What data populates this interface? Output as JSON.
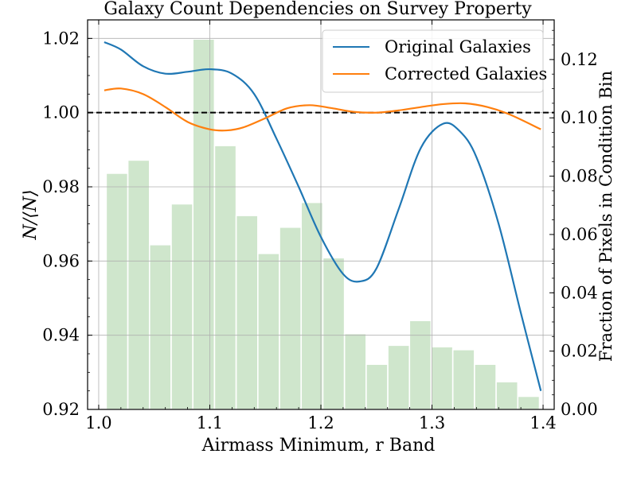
{
  "chart_data": {
    "type": "line",
    "title": "Galaxy Count Dependencies on Survey Property",
    "xlabel": "Airmass Minimum, r Band",
    "ylabel": "N/⟨N⟩",
    "y2label": "Fraction of Pixels in Condition Bin",
    "xlim": [
      0.99,
      1.41
    ],
    "ylim": [
      0.92,
      1.025
    ],
    "y2lim": [
      0.0,
      0.1336
    ],
    "xticks": [
      1.0,
      1.1,
      1.2,
      1.3,
      1.4
    ],
    "xtick_labels": [
      "1.0",
      "1.1",
      "1.2",
      "1.3",
      "1.4"
    ],
    "yticks": [
      0.92,
      0.94,
      0.96,
      0.98,
      1.0,
      1.02
    ],
    "ytick_labels": [
      "0.92",
      "0.94",
      "0.96",
      "0.98",
      "1.00",
      "1.02"
    ],
    "y2ticks": [
      0.0,
      0.02,
      0.04,
      0.06,
      0.08,
      0.1,
      0.12
    ],
    "y2tick_labels": [
      "0.00",
      "0.02",
      "0.04",
      "0.06",
      "0.08",
      "0.10",
      "0.12"
    ],
    "grid": true,
    "legend_position": "top-right",
    "reference_line": {
      "y": 1.0,
      "style": "dashed",
      "color": "#000000"
    },
    "series": [
      {
        "name": "Original Galaxies",
        "color": "#1f77b4",
        "x": [
          1.005,
          1.02,
          1.04,
          1.06,
          1.08,
          1.1,
          1.12,
          1.14,
          1.16,
          1.18,
          1.2,
          1.22,
          1.235,
          1.25,
          1.27,
          1.29,
          1.31,
          1.325,
          1.34,
          1.36,
          1.38,
          1.398
        ],
        "y": [
          1.019,
          1.017,
          1.0125,
          1.0105,
          1.011,
          1.0117,
          1.0105,
          1.005,
          0.993,
          0.98,
          0.9665,
          0.9565,
          0.9545,
          0.958,
          0.974,
          0.9905,
          0.997,
          0.995,
          0.988,
          0.97,
          0.946,
          0.925
        ]
      },
      {
        "name": "Corrected Galaxies",
        "color": "#ff7f0e",
        "x": [
          1.005,
          1.02,
          1.04,
          1.06,
          1.08,
          1.1,
          1.115,
          1.13,
          1.15,
          1.17,
          1.19,
          1.21,
          1.23,
          1.25,
          1.27,
          1.29,
          1.31,
          1.33,
          1.35,
          1.37,
          1.398
        ],
        "y": [
          1.006,
          1.0065,
          1.005,
          1.0015,
          0.9975,
          0.9955,
          0.9952,
          0.996,
          0.9985,
          1.0012,
          1.002,
          1.0012,
          1.0002,
          1.0,
          1.0006,
          1.0015,
          1.0023,
          1.0025,
          1.0015,
          0.9995,
          0.9955
        ]
      }
    ],
    "histogram": {
      "name": "Fraction of Pixels in Condition Bin",
      "color": "#cfe6cc",
      "axis": "right",
      "bin_width": 0.0195,
      "bin_centers": [
        1.0165,
        1.036,
        1.0555,
        1.075,
        1.0945,
        1.114,
        1.1335,
        1.153,
        1.1725,
        1.192,
        1.2115,
        1.231,
        1.2505,
        1.27,
        1.2895,
        1.309,
        1.3285,
        1.348,
        1.3675,
        1.387
      ],
      "values": [
        0.081,
        0.0855,
        0.0565,
        0.0705,
        0.127,
        0.0905,
        0.0665,
        0.0535,
        0.0625,
        0.071,
        0.052,
        0.026,
        0.0155,
        0.022,
        0.0305,
        0.0215,
        0.0205,
        0.0155,
        0.0095,
        0.0045
      ]
    }
  }
}
